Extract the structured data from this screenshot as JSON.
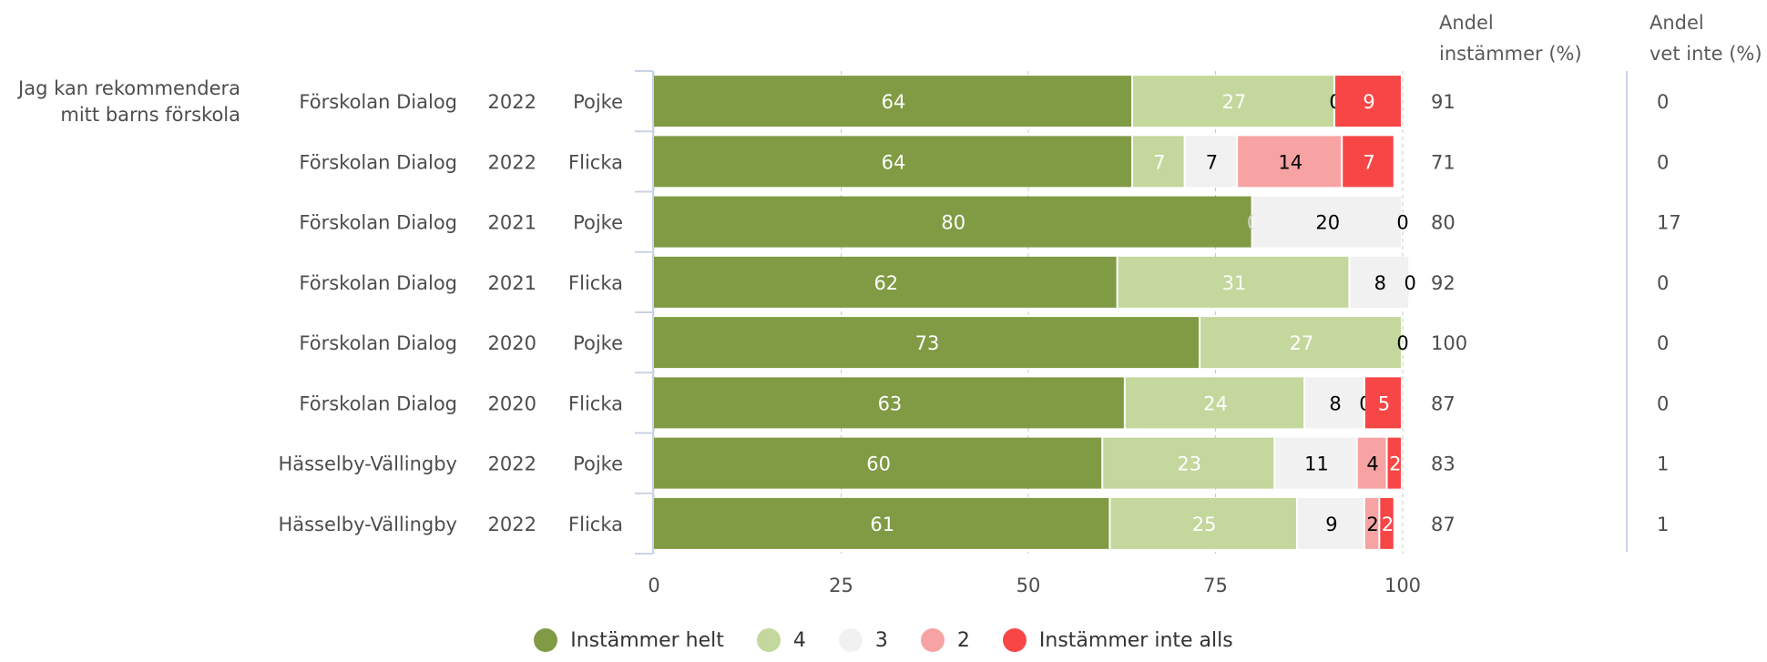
{
  "headers": {
    "share_agree_line1": "Andel",
    "share_agree_line2": "instämmer (%)",
    "share_dontknow_line1": "Andel",
    "share_dontknow_line2": "vet inte (%)"
  },
  "question": {
    "line1": "Jag kan rekommendera",
    "line2": "mitt barns förskola"
  },
  "colors": {
    "Instämmer helt": "#809b44",
    "4": "#c4d79c",
    "3": "#f1f1f1",
    "2": "#f7a3a3",
    "Instämmer inte alls": "#f74646"
  },
  "label_colors": {
    "Instämmer helt": "#ffffff",
    "4": "#ffffff",
    "3": "#000000",
    "2": "#000000",
    "Instämmer inte alls": "#ffffff"
  },
  "chart_data": {
    "type": "bar",
    "orientation": "horizontal",
    "stacked": true,
    "xlim": [
      0,
      100
    ],
    "xticks": [
      "0",
      "25",
      "50",
      "75",
      "100"
    ],
    "categories": [
      {
        "unit": "Förskolan Dialog",
        "year": "2022",
        "gender": "Pojke"
      },
      {
        "unit": "Förskolan Dialog",
        "year": "2022",
        "gender": "Flicka"
      },
      {
        "unit": "Förskolan Dialog",
        "year": "2021",
        "gender": "Pojke"
      },
      {
        "unit": "Förskolan Dialog",
        "year": "2021",
        "gender": "Flicka"
      },
      {
        "unit": "Förskolan Dialog",
        "year": "2020",
        "gender": "Pojke"
      },
      {
        "unit": "Förskolan Dialog",
        "year": "2020",
        "gender": "Flicka"
      },
      {
        "unit": "Hässelby-Vällingby",
        "year": "2022",
        "gender": "Pojke"
      },
      {
        "unit": "Hässelby-Vällingby",
        "year": "2022",
        "gender": "Flicka"
      }
    ],
    "series": [
      {
        "name": "Instämmer helt",
        "values": [
          64,
          64,
          80,
          62,
          73,
          63,
          60,
          61
        ],
        "labels": [
          "64",
          "64",
          "80",
          "62",
          "73",
          "63",
          "60",
          "61"
        ]
      },
      {
        "name": "4",
        "values": [
          27,
          7,
          0,
          31,
          27,
          24,
          23,
          25
        ],
        "labels": [
          "27",
          "7",
          "0",
          "31",
          "27",
          "24",
          "23",
          "25"
        ]
      },
      {
        "name": "3",
        "values": [
          0,
          7,
          20,
          8,
          0,
          8,
          11,
          9
        ],
        "labels": [
          "0",
          "7",
          "20",
          "8",
          "0",
          "8",
          "11",
          "9"
        ]
      },
      {
        "name": "2",
        "values": [
          0,
          14,
          0,
          0,
          0,
          0,
          4,
          2
        ],
        "labels": [
          "",
          "14",
          "0",
          "0",
          "",
          "0",
          "4",
          "2"
        ]
      },
      {
        "name": "Instämmer inte alls",
        "values": [
          9,
          7,
          0,
          0,
          0,
          5,
          2,
          2
        ],
        "labels": [
          "9",
          "7",
          "",
          "",
          "",
          "5",
          "2",
          "2"
        ]
      }
    ],
    "share_agree": [
      "91",
      "71",
      "80",
      "92",
      "100",
      "87",
      "83",
      "87"
    ],
    "share_dont_know": [
      "0",
      "0",
      "17",
      "0",
      "0",
      "0",
      "1",
      "1"
    ],
    "legend_position": "bottom"
  }
}
